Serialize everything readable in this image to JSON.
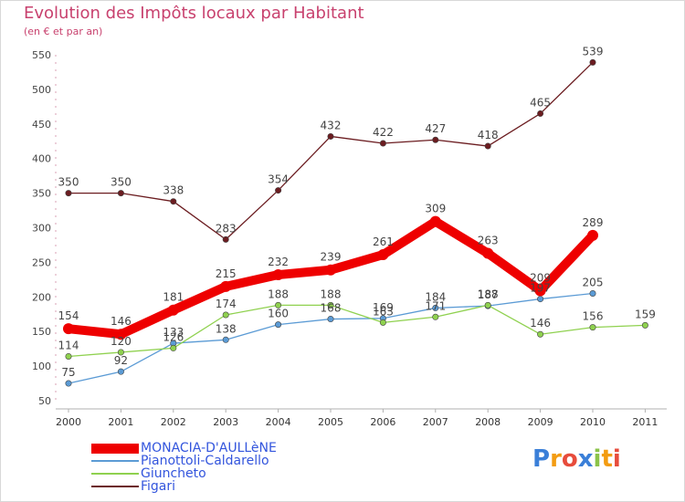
{
  "title": "Evolution des Impôts locaux par Habitant",
  "subtitle": "(en € et par an)",
  "brand": "Proxiti",
  "chart_data": {
    "type": "line",
    "title": "Evolution des Impôts locaux par Habitant",
    "subtitle": "(en € et par an)",
    "xlabel": "",
    "ylabel": "",
    "ylim": [
      50,
      550
    ],
    "yticks": [
      50,
      100,
      150,
      200,
      250,
      300,
      350,
      400,
      450,
      500,
      550
    ],
    "categories": [
      "2000",
      "2001",
      "2002",
      "2003",
      "2004",
      "2005",
      "2006",
      "2007",
      "2008",
      "2009",
      "2010",
      "2011"
    ],
    "grid": false,
    "legend_position": "bottom-left",
    "series": [
      {
        "name": "MONACIA-D'AULLèNE",
        "color": "#ee0000",
        "values": [
          154,
          146,
          181,
          215,
          232,
          239,
          261,
          309,
          263,
          209,
          289,
          null
        ],
        "labels": [
          "154",
          "146",
          "181",
          "215",
          "232",
          "239",
          "261",
          "309",
          "263",
          "209",
          "289",
          null
        ]
      },
      {
        "name": "Pianottoli-Caldarello",
        "color": "#5b9bd5",
        "values": [
          75,
          92,
          133,
          138,
          160,
          168,
          169,
          184,
          187,
          197,
          205,
          null
        ],
        "labels": [
          "75",
          "92",
          "133",
          "138",
          "160",
          "168",
          "169",
          "184",
          "187",
          "197",
          "205",
          null
        ]
      },
      {
        "name": "Giuncheto",
        "color": "#8fd14f",
        "values": [
          114,
          120,
          126,
          174,
          188,
          188,
          163,
          171,
          188,
          146,
          156,
          159
        ],
        "labels": [
          "114",
          "120",
          "126",
          "174",
          "188",
          "188",
          "163",
          "171",
          "188",
          "146",
          "156",
          "159"
        ]
      },
      {
        "name": "Figari",
        "color": "#6b1c20",
        "values": [
          350,
          350,
          338,
          283,
          354,
          432,
          422,
          427,
          418,
          465,
          539,
          null
        ],
        "labels": [
          "350",
          "350",
          "338",
          "283",
          "354",
          "432",
          "422",
          "427",
          "418",
          "465",
          "539",
          null
        ]
      }
    ]
  }
}
